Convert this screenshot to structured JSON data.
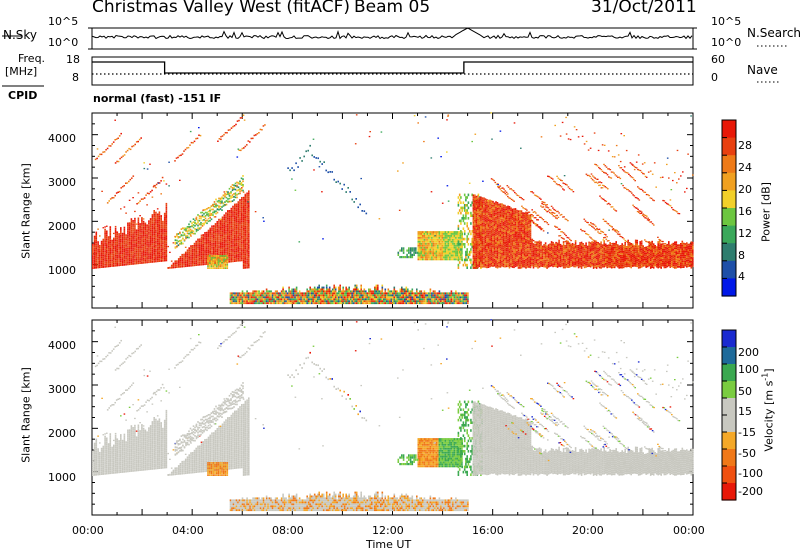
{
  "header": {
    "radar": "Christmas Valley West (fitACF)",
    "beam": "Beam 05",
    "date": "31/Oct/2011"
  },
  "noise_panel": {
    "left_label": "N.Sky",
    "right_label": "N.Search",
    "left_ticks": [
      "10^5",
      "10^0"
    ],
    "right_ticks": [
      "10^5",
      "10^0"
    ]
  },
  "freq_panel": {
    "left_label_line1": "Freq.",
    "left_label_line2": "[MHz]",
    "left_ticks": [
      "18",
      "8"
    ],
    "right_label": "Nave",
    "right_ticks": [
      "60",
      "0"
    ]
  },
  "cpid_panel": {
    "label": "CPID",
    "text": "normal (fast) -151 IF"
  },
  "colors": {
    "power": [
      "#0018e8",
      "#1e4fa8",
      "#2e7d6e",
      "#3aa85a",
      "#6cc640",
      "#f2d02a",
      "#f0a020",
      "#ee7a18",
      "#e84010",
      "#e81808"
    ],
    "velocity": [
      "#e81808",
      "#f05010",
      "#f07818",
      "#f4a828",
      "#c8c8c0",
      "#c8c8c0",
      "#7acc40",
      "#3aa850",
      "#1e6a9a",
      "#1a2ad0"
    ]
  },
  "chart_data": [
    {
      "type": "heatmap",
      "panel": "power",
      "ylabel": "Slant Range [km]",
      "colorbar_label": "Power [dB]",
      "colorbar_ticks": [
        "28",
        "24",
        "20",
        "16",
        "12",
        "8",
        "4"
      ],
      "yticks": [
        "1000",
        "2000",
        "3000",
        "4000"
      ],
      "ylim": [
        0,
        4500
      ],
      "xlim_hours": [
        0,
        24
      ],
      "clim": [
        0,
        30
      ]
    },
    {
      "type": "heatmap",
      "panel": "velocity",
      "ylabel": "Slant Range [km]",
      "colorbar_label": "Velocity [m s",
      "colorbar_label_sup": "-1",
      "colorbar_label_end": "]",
      "colorbar_ticks": [
        "200",
        "100",
        "50",
        "15",
        "-15",
        "-50",
        "-100",
        "-200"
      ],
      "yticks": [
        "1000",
        "2000",
        "3000",
        "4000"
      ],
      "ylim": [
        0,
        4500
      ],
      "xlim_hours": [
        0,
        24
      ]
    }
  ],
  "xaxis": {
    "ticks": [
      "00:00",
      "04:00",
      "08:00",
      "12:00",
      "16:00",
      "20:00",
      "00:00"
    ],
    "label": "Time UT"
  }
}
